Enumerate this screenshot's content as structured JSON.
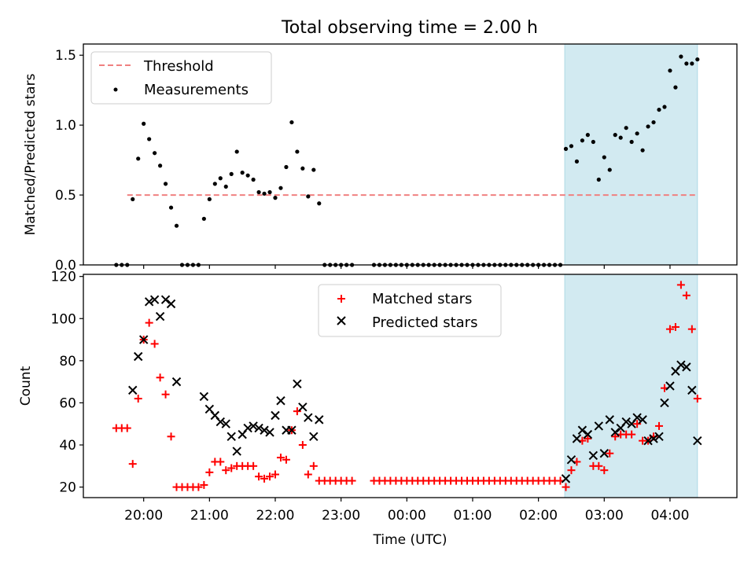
{
  "chart_data": [
    {
      "type": "scatter",
      "title": "Total observing time = 2.00 h",
      "ylabel": "Matched/Predicted stars",
      "xlabel": "",
      "ylim": [
        0,
        1.58
      ],
      "yticks": [
        "0.0",
        "0.5",
        "1.0",
        "1.5"
      ],
      "grid": false,
      "legend_position": "top-left",
      "threshold": {
        "name": "Threshold",
        "value": 0.5,
        "x_start": "19:45",
        "x_end": "04:25",
        "color": "#f08080"
      },
      "highlight_region": {
        "x_start": "02:24",
        "x_end": "04:25",
        "color": "#add8e6"
      },
      "series": [
        {
          "name": "Measurements",
          "color": "#000000",
          "x": [
            "19:35",
            "19:40",
            "19:45",
            "19:50",
            "19:55",
            "20:00",
            "20:05",
            "20:10",
            "20:15",
            "20:20",
            "20:25",
            "20:30",
            "20:35",
            "20:40",
            "20:45",
            "20:50",
            "20:55",
            "21:00",
            "21:05",
            "21:10",
            "21:15",
            "21:20",
            "21:25",
            "21:30",
            "21:35",
            "21:40",
            "21:45",
            "21:50",
            "21:55",
            "22:00",
            "22:05",
            "22:10",
            "22:15",
            "22:20",
            "22:25",
            "22:30",
            "22:35",
            "22:40",
            "22:45",
            "22:50",
            "22:55",
            "23:00",
            "23:05",
            "23:10",
            "23:30",
            "23:35",
            "23:40",
            "23:45",
            "23:50",
            "23:55",
            "00:00",
            "00:05",
            "00:10",
            "00:15",
            "00:20",
            "00:25",
            "00:30",
            "00:35",
            "00:40",
            "00:45",
            "00:50",
            "00:55",
            "01:00",
            "01:05",
            "01:10",
            "01:15",
            "01:20",
            "01:25",
            "01:30",
            "01:35",
            "01:40",
            "01:45",
            "01:50",
            "01:55",
            "02:00",
            "02:05",
            "02:10",
            "02:15",
            "02:20",
            "02:25",
            "02:30",
            "02:35",
            "02:40",
            "02:45",
            "02:50",
            "02:55",
            "03:00",
            "03:05",
            "03:10",
            "03:15",
            "03:20",
            "03:25",
            "03:30",
            "03:35",
            "03:40",
            "03:45",
            "03:50",
            "03:55",
            "04:00",
            "04:05",
            "04:10",
            "04:15",
            "04:20",
            "04:25"
          ],
          "values": [
            0,
            0,
            0,
            0.47,
            0.76,
            1.01,
            0.9,
            0.8,
            0.71,
            0.58,
            0.41,
            0.28,
            0,
            0,
            0,
            0,
            0.33,
            0.47,
            0.58,
            0.62,
            0.56,
            0.65,
            0.81,
            0.66,
            0.64,
            0.61,
            0.52,
            0.51,
            0.52,
            0.48,
            0.55,
            0.7,
            1.02,
            0.81,
            0.69,
            0.49,
            0.68,
            0.44,
            0,
            0,
            0,
            0,
            0,
            0,
            0,
            0,
            0,
            0,
            0,
            0,
            0,
            0,
            0,
            0,
            0,
            0,
            0,
            0,
            0,
            0,
            0,
            0,
            0,
            0,
            0,
            0,
            0,
            0,
            0,
            0,
            0,
            0,
            0,
            0,
            0,
            0,
            0,
            0,
            0,
            0.83,
            0.85,
            0.74,
            0.89,
            0.93,
            0.88,
            0.61,
            0.77,
            0.68,
            0.93,
            0.91,
            0.98,
            0.88,
            0.94,
            0.82,
            0.99,
            1.02,
            1.11,
            1.13,
            1.39,
            1.27,
            1.49,
            1.44,
            1.44,
            1.47
          ]
        }
      ]
    },
    {
      "type": "scatter",
      "title": "",
      "ylabel": "Count",
      "xlabel": "Time (UTC)",
      "ylim": [
        15,
        121
      ],
      "yticks": [
        "20",
        "40",
        "60",
        "80",
        "100",
        "120"
      ],
      "xticks": [
        "20:00",
        "21:00",
        "22:00",
        "23:00",
        "00:00",
        "01:00",
        "02:00",
        "03:00",
        "04:00"
      ],
      "grid": false,
      "legend_position": "top-center",
      "highlight_region": {
        "x_start": "02:24",
        "x_end": "04:25",
        "color": "#add8e6"
      },
      "series": [
        {
          "name": "Matched stars",
          "marker": "+",
          "color": "#ff0000",
          "x": [
            "19:35",
            "19:40",
            "19:45",
            "19:50",
            "19:55",
            "20:00",
            "20:05",
            "20:10",
            "20:15",
            "20:20",
            "20:25",
            "20:30",
            "20:35",
            "20:40",
            "20:45",
            "20:50",
            "20:55",
            "21:00",
            "21:05",
            "21:10",
            "21:15",
            "21:20",
            "21:25",
            "21:30",
            "21:35",
            "21:40",
            "21:45",
            "21:50",
            "21:55",
            "22:00",
            "22:05",
            "22:10",
            "22:15",
            "22:20",
            "22:25",
            "22:30",
            "22:35",
            "22:40",
            "22:45",
            "22:50",
            "22:55",
            "23:00",
            "23:05",
            "23:10",
            "23:30",
            "23:35",
            "23:40",
            "23:45",
            "23:50",
            "23:55",
            "00:00",
            "00:05",
            "00:10",
            "00:15",
            "00:20",
            "00:25",
            "00:30",
            "00:35",
            "00:40",
            "00:45",
            "00:50",
            "00:55",
            "01:00",
            "01:05",
            "01:10",
            "01:15",
            "01:20",
            "01:25",
            "01:30",
            "01:35",
            "01:40",
            "01:45",
            "01:50",
            "01:55",
            "02:00",
            "02:05",
            "02:10",
            "02:15",
            "02:20",
            "02:25",
            "02:30",
            "02:35",
            "02:40",
            "02:45",
            "02:50",
            "02:55",
            "03:00",
            "03:05",
            "03:10",
            "03:15",
            "03:20",
            "03:25",
            "03:30",
            "03:35",
            "03:40",
            "03:45",
            "03:50",
            "03:55",
            "04:00",
            "04:05",
            "04:10",
            "04:15",
            "04:20",
            "04:25"
          ],
          "values": [
            48,
            48,
            48,
            31,
            62,
            90,
            98,
            88,
            72,
            64,
            44,
            20,
            20,
            20,
            20,
            20,
            21,
            27,
            32,
            32,
            28,
            29,
            30,
            30,
            30,
            30,
            25,
            24,
            25,
            26,
            34,
            33,
            47,
            56,
            40,
            26,
            30,
            23,
            23,
            23,
            23,
            23,
            23,
            23,
            23,
            23,
            23,
            23,
            23,
            23,
            23,
            23,
            23,
            23,
            23,
            23,
            23,
            23,
            23,
            23,
            23,
            23,
            23,
            23,
            23,
            23,
            23,
            23,
            23,
            23,
            23,
            23,
            23,
            23,
            23,
            23,
            23,
            23,
            23,
            20,
            28,
            32,
            42,
            43,
            30,
            30,
            28,
            36,
            44,
            45,
            45,
            45,
            50,
            42,
            42,
            44,
            49,
            67,
            95,
            96,
            116,
            111,
            95,
            62
          ]
        },
        {
          "name": "Predicted stars",
          "marker": "x",
          "color": "#000000",
          "x": [
            "19:50",
            "19:55",
            "20:00",
            "20:05",
            "20:10",
            "20:15",
            "20:20",
            "20:25",
            "20:30",
            "20:55",
            "21:00",
            "21:05",
            "21:10",
            "21:15",
            "21:20",
            "21:25",
            "21:30",
            "21:35",
            "21:40",
            "21:45",
            "21:50",
            "21:55",
            "22:00",
            "22:05",
            "22:10",
            "22:15",
            "22:20",
            "22:25",
            "22:30",
            "22:35",
            "22:40",
            "02:25",
            "02:30",
            "02:35",
            "02:40",
            "02:45",
            "02:50",
            "02:55",
            "03:00",
            "03:05",
            "03:10",
            "03:15",
            "03:20",
            "03:25",
            "03:30",
            "03:35",
            "03:40",
            "03:45",
            "03:50",
            "03:55",
            "04:00",
            "04:05",
            "04:10",
            "04:15",
            "04:20",
            "04:25"
          ],
          "values": [
            66,
            82,
            90,
            108,
            109,
            101,
            109,
            107,
            70,
            63,
            57,
            54,
            51,
            50,
            44,
            37,
            45,
            48,
            49,
            48,
            47,
            46,
            54,
            61,
            47,
            47,
            69,
            58,
            53,
            44,
            52,
            24,
            33,
            43,
            47,
            45,
            35,
            49,
            36,
            52,
            46,
            48,
            51,
            50,
            53,
            52,
            42,
            43,
            44,
            60,
            68,
            75,
            78,
            77,
            66,
            42
          ]
        }
      ]
    }
  ]
}
